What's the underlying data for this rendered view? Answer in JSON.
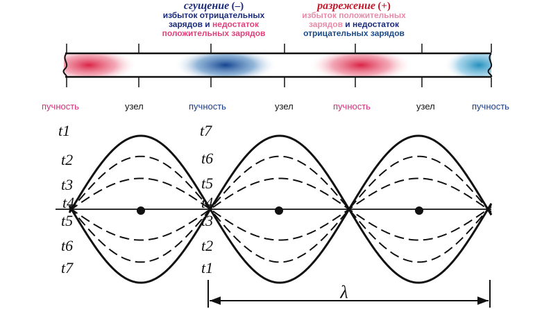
{
  "compression": {
    "title": "сгущение",
    "sign": "(–)",
    "line1": "избыток отрицательных",
    "line2_a": "зарядов и ",
    "line2_b": "недостаток",
    "line3": "положительных зарядов"
  },
  "rarefaction": {
    "title": "разрежение",
    "sign": "(+)",
    "line1": "избыток положительных",
    "line2_a": "зарядов",
    "line2_b": " и недостаток",
    "line3": "отрицательных зарядов"
  },
  "axis_labels": [
    "пучность",
    "узел",
    "пучность",
    "узел",
    "пучность",
    "узел",
    "пучность"
  ],
  "time_left": [
    "t1",
    "t2",
    "t3",
    "t4",
    "t5",
    "t6",
    "t7"
  ],
  "time_mid_top": [
    "t7",
    "t6",
    "t5",
    "t4"
  ],
  "time_mid_bottom": [
    "t3",
    "t2",
    "t1"
  ],
  "wavelength_symbol": "λ",
  "colors": {
    "negative": "#1a5aa0",
    "positive": "#d0204a",
    "pink_text": "#e0407a",
    "navy": "#1a2a7a"
  }
}
